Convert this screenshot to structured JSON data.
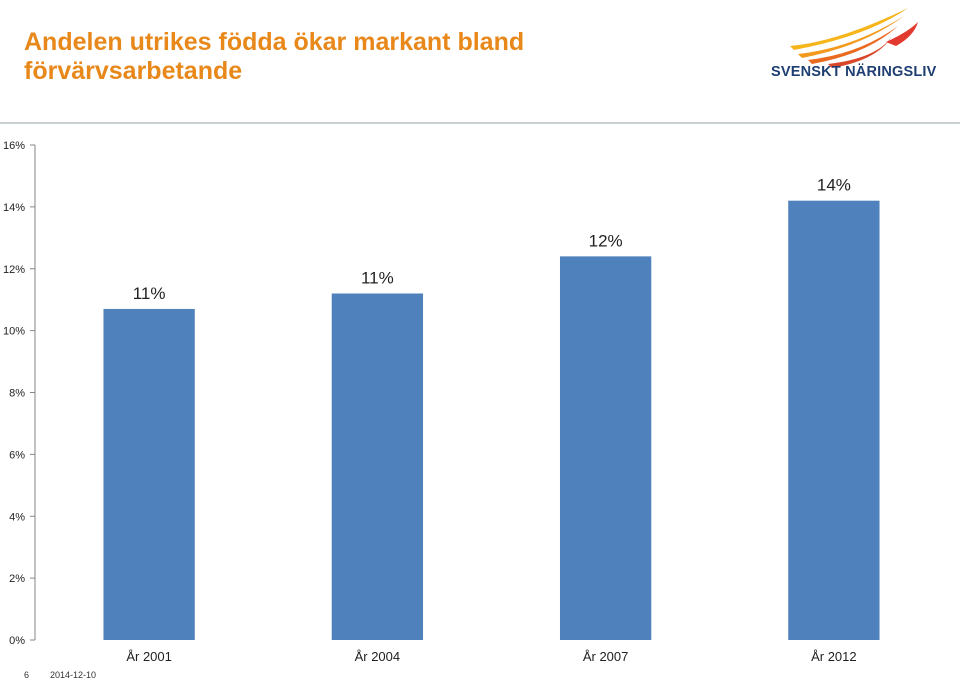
{
  "header": {
    "title_line1": "Andelen utrikes födda ökar markant bland",
    "title_line2": "förvärvsarbetande",
    "logo_text": "SVENSKT NÄRINGSLIV"
  },
  "footer": {
    "slide_number": "6",
    "date": "2014-12-10"
  },
  "colors": {
    "title": "#e8881a",
    "bar": "#4f81bd",
    "logo_text": "#1f3f73"
  },
  "chart_data": {
    "type": "bar",
    "categories": [
      "År 2001",
      "År 2004",
      "År 2007",
      "År 2012"
    ],
    "values": [
      10.7,
      11.2,
      12.4,
      14.2
    ],
    "data_labels": [
      "11%",
      "11%",
      "12%",
      "14%"
    ],
    "title": "",
    "xlabel": "",
    "ylabel": "",
    "ylim": [
      0,
      16
    ],
    "yticks": [
      "0%",
      "2%",
      "4%",
      "6%",
      "8%",
      "10%",
      "12%",
      "14%",
      "16%"
    ],
    "grid": false,
    "legend": "none"
  }
}
